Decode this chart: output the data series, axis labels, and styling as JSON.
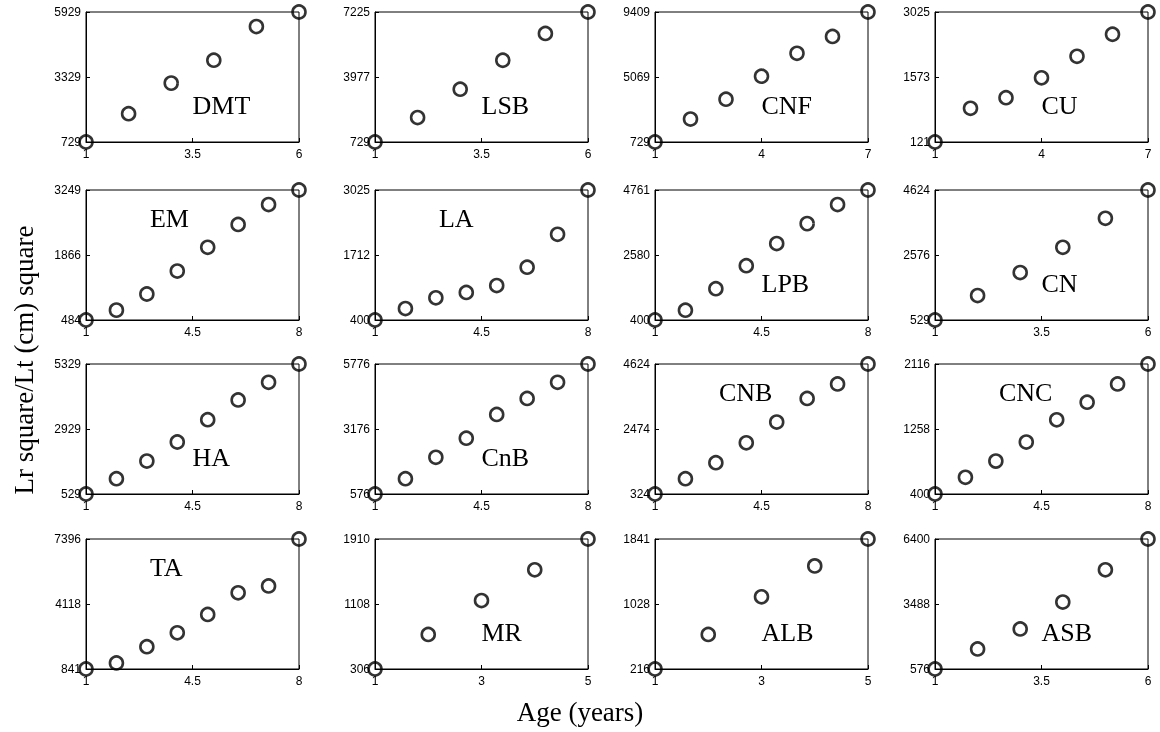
{
  "chart_data": [
    {
      "type": "scatter",
      "x": [
        1,
        2,
        3,
        4,
        5,
        6
      ],
      "values": [
        729,
        1862,
        3084,
        4001,
        5347,
        5929
      ],
      "xlim": [
        1,
        6
      ],
      "xticks": [
        1,
        3.5,
        6
      ],
      "ylim": [
        729,
        5929
      ],
      "yticks": [
        729,
        3329,
        5929
      ],
      "marker": "circle",
      "color": "#000000",
      "annotations": [
        "DMT"
      ]
    },
    {
      "type": "scatter",
      "x": [
        1,
        2,
        3,
        4,
        5,
        6
      ],
      "values": [
        729,
        1951,
        3366,
        4814,
        6154,
        7225
      ],
      "xlim": [
        1,
        6
      ],
      "xticks": [
        1,
        3.5,
        6
      ],
      "ylim": [
        729,
        7225
      ],
      "yticks": [
        729,
        3977,
        7225
      ],
      "marker": "circle",
      "color": "#000000",
      "annotations": [
        "LSB"
      ]
    },
    {
      "type": "scatter",
      "x": [
        1,
        2,
        3,
        4,
        5,
        6,
        7
      ],
      "values": [
        729,
        2257,
        3585,
        5121,
        6649,
        7777,
        9409
      ],
      "xlim": [
        1,
        7
      ],
      "xticks": [
        1,
        4,
        7
      ],
      "ylim": [
        729,
        9409
      ],
      "yticks": [
        729,
        5069,
        9409
      ],
      "marker": "circle",
      "color": "#000000",
      "annotations": [
        "CNF"
      ]
    },
    {
      "type": "scatter",
      "x": [
        1,
        2,
        3,
        4,
        5,
        6,
        7
      ],
      "values": [
        121,
        873,
        1111,
        1556,
        2035,
        2528,
        3025
      ],
      "xlim": [
        1,
        7
      ],
      "xticks": [
        1,
        4,
        7
      ],
      "ylim": [
        121,
        3025
      ],
      "yticks": [
        121,
        1573,
        3025
      ],
      "marker": "circle",
      "color": "#000000",
      "annotations": [
        "CU"
      ]
    },
    {
      "type": "scatter",
      "x": [
        1,
        2,
        3,
        4,
        5,
        6,
        7,
        8
      ],
      "values": [
        484,
        694,
        1037,
        1524,
        2030,
        2516,
        2940,
        3249
      ],
      "xlim": [
        1,
        8
      ],
      "xticks": [
        1,
        4.5,
        8
      ],
      "ylim": [
        484,
        3249
      ],
      "yticks": [
        484,
        1866,
        3249
      ],
      "marker": "circle",
      "color": "#000000",
      "annotations": [
        "EM"
      ],
      "ylabel": "Lr square/Lt (cm) square"
    },
    {
      "type": "scatter",
      "x": [
        1,
        2,
        3,
        4,
        5,
        6,
        7,
        8
      ],
      "values": [
        400,
        631,
        849,
        957,
        1096,
        1466,
        2130,
        3025
      ],
      "xlim": [
        1,
        8
      ],
      "xticks": [
        1,
        4.5,
        8
      ],
      "ylim": [
        400,
        3025
      ],
      "yticks": [
        400,
        1712,
        3025
      ],
      "marker": "circle",
      "color": "#000000",
      "annotations": [
        "LA"
      ]
    },
    {
      "type": "scatter",
      "x": [
        1,
        2,
        3,
        4,
        5,
        6,
        7,
        8
      ],
      "values": [
        400,
        731,
        1451,
        2223,
        2966,
        3633,
        4273,
        4761
      ],
      "xlim": [
        1,
        8
      ],
      "xticks": [
        1,
        4.5,
        8
      ],
      "ylim": [
        400,
        4761
      ],
      "yticks": [
        400,
        2580,
        4761
      ],
      "marker": "circle",
      "color": "#000000",
      "annotations": [
        "LPB"
      ]
    },
    {
      "type": "scatter",
      "x": [
        1,
        2,
        3,
        4,
        5,
        6
      ],
      "values": [
        529,
        1299,
        2024,
        2818,
        3731,
        4624
      ],
      "xlim": [
        1,
        6
      ],
      "xticks": [
        1,
        3.5,
        6
      ],
      "ylim": [
        529,
        4624
      ],
      "yticks": [
        529,
        2576,
        4624
      ],
      "marker": "circle",
      "color": "#000000",
      "annotations": [
        "CN"
      ]
    },
    {
      "type": "scatter",
      "x": [
        1,
        2,
        3,
        4,
        5,
        6,
        7,
        8
      ],
      "values": [
        529,
        1095,
        1744,
        2449,
        3271,
        4004,
        4653,
        5329
      ],
      "xlim": [
        1,
        8
      ],
      "xticks": [
        1,
        4.5,
        8
      ],
      "ylim": [
        529,
        5329
      ],
      "yticks": [
        529,
        2929,
        5329
      ],
      "marker": "circle",
      "color": "#000000",
      "annotations": [
        "HA"
      ]
    },
    {
      "type": "scatter",
      "x": [
        1,
        2,
        3,
        4,
        5,
        6,
        7,
        8
      ],
      "values": [
        576,
        1190,
        2042,
        2807,
        3758,
        4398,
        5043,
        5776
      ],
      "xlim": [
        1,
        8
      ],
      "xticks": [
        1,
        4.5,
        8
      ],
      "ylim": [
        576,
        5776
      ],
      "yticks": [
        576,
        3176,
        5776
      ],
      "marker": "circle",
      "color": "#000000",
      "annotations": [
        "CnB"
      ]
    },
    {
      "type": "scatter",
      "x": [
        1,
        2,
        3,
        4,
        5,
        6,
        7,
        8
      ],
      "values": [
        324,
        831,
        1361,
        2018,
        2703,
        3485,
        3966,
        4624
      ],
      "xlim": [
        1,
        8
      ],
      "xticks": [
        1,
        4.5,
        8
      ],
      "ylim": [
        324,
        4624
      ],
      "yticks": [
        324,
        2474,
        4624
      ],
      "marker": "circle",
      "color": "#000000",
      "annotations": [
        "CNB"
      ]
    },
    {
      "type": "scatter",
      "x": [
        1,
        2,
        3,
        4,
        5,
        6,
        7,
        8
      ],
      "values": [
        400,
        621,
        834,
        1086,
        1380,
        1612,
        1853,
        2116
      ],
      "xlim": [
        1,
        8
      ],
      "xticks": [
        1,
        4.5,
        8
      ],
      "ylim": [
        400,
        2116
      ],
      "yticks": [
        400,
        1258,
        2116
      ],
      "marker": "circle",
      "color": "#000000",
      "annotations": [
        "CNC"
      ]
    },
    {
      "type": "scatter",
      "x": [
        1,
        2,
        3,
        4,
        5,
        6,
        7,
        8
      ],
      "values": [
        841,
        1149,
        1968,
        2663,
        3594,
        4682,
        5030,
        7396
      ],
      "xlim": [
        1,
        8
      ],
      "xticks": [
        1,
        4.5,
        8
      ],
      "ylim": [
        841,
        7396
      ],
      "yticks": [
        841,
        4118,
        7396
      ],
      "marker": "circle",
      "color": "#000000",
      "annotations": [
        "TA"
      ]
    },
    {
      "type": "scatter",
      "x": [
        1,
        2,
        3,
        4,
        5
      ],
      "values": [
        306,
        733,
        1151,
        1530,
        1910
      ],
      "xlim": [
        1,
        5
      ],
      "xticks": [
        1,
        3,
        5
      ],
      "ylim": [
        306,
        1910
      ],
      "yticks": [
        306,
        1108,
        1910
      ],
      "marker": "circle",
      "color": "#000000",
      "annotations": [
        "MR"
      ],
      "xlabel": "Age (years)"
    },
    {
      "type": "scatter",
      "x": [
        1,
        2,
        3,
        4,
        5
      ],
      "values": [
        216,
        648,
        1119,
        1505,
        1841
      ],
      "xlim": [
        1,
        5
      ],
      "xticks": [
        1,
        3,
        5
      ],
      "ylim": [
        216,
        1841
      ],
      "yticks": [
        216,
        1028,
        1841
      ],
      "marker": "circle",
      "color": "#000000",
      "annotations": [
        "ALB"
      ]
    },
    {
      "type": "scatter",
      "x": [
        1,
        2,
        3,
        4,
        5,
        6
      ],
      "values": [
        576,
        1473,
        2370,
        3575,
        5020,
        6400
      ],
      "xlim": [
        1,
        6
      ],
      "xticks": [
        1,
        3.5,
        6
      ],
      "ylim": [
        576,
        6400
      ],
      "yticks": [
        576,
        3488,
        6400
      ],
      "marker": "circle",
      "color": "#000000",
      "annotations": [
        "ASB"
      ]
    }
  ]
}
